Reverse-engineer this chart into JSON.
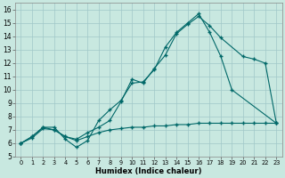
{
  "xlabel": "Humidex (Indice chaleur)",
  "bg_color": "#c8e8e0",
  "grid_color": "#a0c8c8",
  "line_color": "#006868",
  "xlim": [
    -0.5,
    23.5
  ],
  "ylim": [
    5.0,
    16.5
  ],
  "xticks": [
    0,
    1,
    2,
    3,
    4,
    5,
    6,
    7,
    8,
    9,
    10,
    11,
    12,
    13,
    14,
    15,
    16,
    17,
    18,
    19,
    20,
    21,
    22,
    23
  ],
  "yticks": [
    5,
    6,
    7,
    8,
    9,
    10,
    11,
    12,
    13,
    14,
    15,
    16
  ],
  "line1": {
    "x": [
      0,
      1,
      2,
      3,
      4,
      5,
      6,
      7,
      8,
      9,
      10,
      11,
      12,
      13,
      14,
      15,
      16,
      17,
      18,
      19,
      23
    ],
    "y": [
      6,
      6.5,
      7.2,
      7.2,
      6.3,
      5.7,
      6.2,
      7.7,
      8.5,
      9.2,
      10.5,
      10.6,
      11.5,
      13.2,
      14.3,
      15.0,
      15.7,
      14.3,
      12.5,
      10.0,
      7.5
    ]
  },
  "line2": {
    "x": [
      0,
      1,
      2,
      3,
      4,
      5,
      6,
      7,
      8,
      9,
      10,
      11,
      12,
      13,
      14,
      15,
      16,
      17,
      18,
      20,
      21,
      22,
      23
    ],
    "y": [
      6,
      6.5,
      7.2,
      7.0,
      6.5,
      6.3,
      6.8,
      7.2,
      7.7,
      9.1,
      10.8,
      10.5,
      11.6,
      12.6,
      14.2,
      14.9,
      15.5,
      14.8,
      13.9,
      12.5,
      12.3,
      12.0,
      7.5
    ]
  },
  "line3": {
    "x": [
      0,
      1,
      2,
      3,
      4,
      5,
      6,
      7,
      8,
      9,
      10,
      11,
      12,
      13,
      14,
      15,
      16,
      17,
      18,
      19,
      20,
      21,
      22,
      23
    ],
    "y": [
      6.0,
      6.4,
      7.1,
      7.0,
      6.5,
      6.2,
      6.5,
      6.8,
      7.0,
      7.1,
      7.2,
      7.2,
      7.3,
      7.3,
      7.4,
      7.4,
      7.5,
      7.5,
      7.5,
      7.5,
      7.5,
      7.5,
      7.5,
      7.5
    ]
  }
}
